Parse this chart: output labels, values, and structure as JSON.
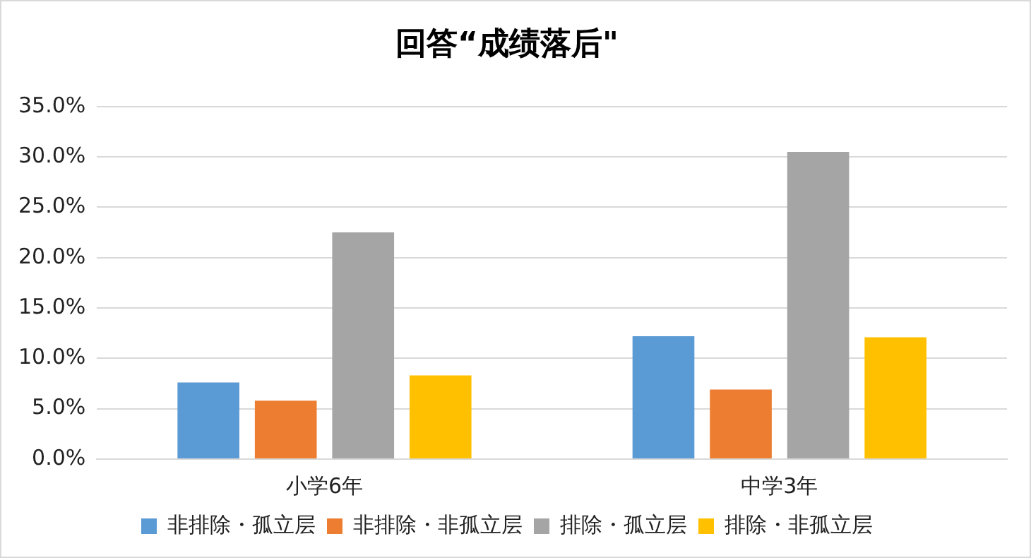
{
  "chart_data": {
    "type": "bar",
    "title": "回答“成绩落后\"",
    "categories": [
      "小学6年",
      "中学3年"
    ],
    "series": [
      {
        "name": "非排除・孤立层",
        "color": "#5b9bd5",
        "values": [
          7.6,
          12.2
        ]
      },
      {
        "name": "非排除・非孤立层",
        "color": "#ed7d31",
        "values": [
          5.8,
          6.9
        ]
      },
      {
        "name": "排除・孤立层",
        "color": "#a5a5a5",
        "values": [
          22.5,
          30.5
        ]
      },
      {
        "name": "排除・非孤立层",
        "color": "#ffc000",
        "values": [
          8.3,
          12.1
        ]
      }
    ],
    "ylim": [
      0,
      35
    ],
    "yticks": [
      {
        "value": 0,
        "label": "0.0%"
      },
      {
        "value": 5,
        "label": "5.0%"
      },
      {
        "value": 10,
        "label": "10.0%"
      },
      {
        "value": 15,
        "label": "15.0%"
      },
      {
        "value": 20,
        "label": "20.0%"
      },
      {
        "value": 25,
        "label": "25.0%"
      },
      {
        "value": 30,
        "label": "30.0%"
      },
      {
        "value": 35,
        "label": "35.0%"
      }
    ],
    "grid": "y",
    "legend": "bottom"
  }
}
